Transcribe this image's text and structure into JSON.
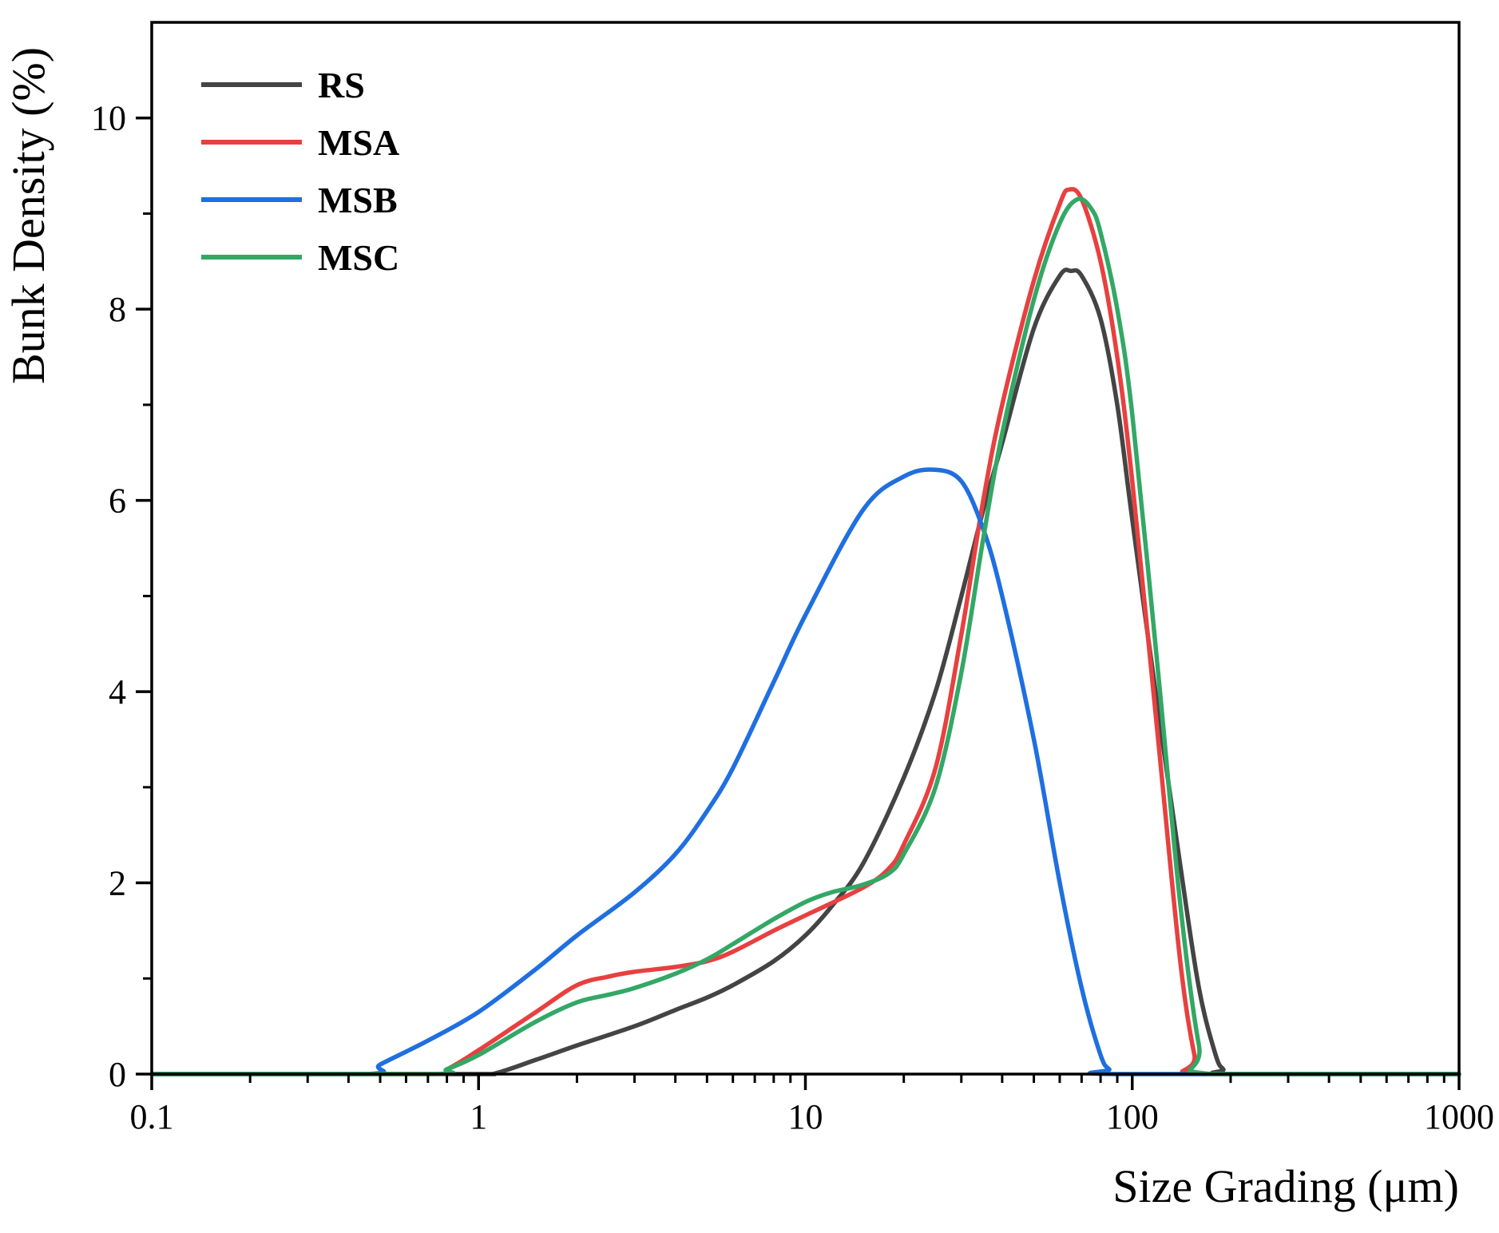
{
  "chart_data": {
    "type": "line",
    "title": "",
    "xlabel": "Size Grading (μm)",
    "ylabel": "Bunk Density (%)",
    "xscale": "log",
    "xlim": [
      0.1,
      1000
    ],
    "ylim": [
      0,
      11
    ],
    "x_ticks": [
      0.1,
      1,
      10,
      100,
      1000
    ],
    "x_tick_labels": [
      "0.1",
      "1",
      "10",
      "100",
      "1000"
    ],
    "y_ticks": [
      0,
      2,
      4,
      6,
      8,
      10
    ],
    "y_tick_labels": [
      "0",
      "2",
      "4",
      "6",
      "8",
      "10"
    ],
    "legend_position": "top-left",
    "series": [
      {
        "name": "RS",
        "color": "#444444",
        "x": [
          0.1,
          0.9,
          1.1,
          1.5,
          2,
          3,
          4,
          5,
          6,
          8,
          10,
          12,
          15,
          20,
          25,
          30,
          35,
          40,
          50,
          60,
          65,
          70,
          80,
          90,
          100,
          120,
          140,
          160,
          180,
          190,
          200,
          1000
        ],
        "y": [
          0,
          0,
          0,
          0.15,
          0.3,
          0.5,
          0.67,
          0.8,
          0.93,
          1.18,
          1.45,
          1.75,
          2.2,
          3.1,
          4.0,
          5.0,
          5.9,
          6.6,
          7.8,
          8.35,
          8.4,
          8.35,
          7.9,
          7.0,
          5.8,
          3.8,
          2.2,
          0.9,
          0.2,
          0.05,
          0,
          0
        ]
      },
      {
        "name": "MSA",
        "color": "#e84040",
        "x": [
          0.1,
          0.7,
          0.8,
          1,
          1.5,
          2,
          2.5,
          3,
          4,
          5,
          6,
          8,
          10,
          15,
          18,
          20,
          25,
          30,
          35,
          40,
          50,
          60,
          64,
          70,
          80,
          90,
          100,
          120,
          140,
          155,
          165,
          1000
        ],
        "y": [
          0,
          0,
          0.05,
          0.25,
          0.65,
          0.93,
          1.02,
          1.07,
          1.12,
          1.18,
          1.28,
          1.5,
          1.66,
          1.95,
          2.15,
          2.4,
          3.2,
          4.6,
          6.0,
          7.0,
          8.3,
          9.1,
          9.25,
          9.15,
          8.5,
          7.5,
          6.2,
          3.5,
          1.2,
          0.2,
          0,
          0
        ]
      },
      {
        "name": "MSB",
        "color": "#1f6fe0",
        "x": [
          0.1,
          0.45,
          0.5,
          0.7,
          1,
          1.5,
          2,
          3,
          4,
          5,
          6,
          8,
          10,
          15,
          20,
          25,
          30,
          35,
          40,
          50,
          60,
          70,
          80,
          85,
          90,
          1000
        ],
        "y": [
          0,
          0,
          0.1,
          0.35,
          0.65,
          1.1,
          1.45,
          1.9,
          2.3,
          2.75,
          3.2,
          4.1,
          4.8,
          5.9,
          6.25,
          6.32,
          6.2,
          5.7,
          5.0,
          3.5,
          2.0,
          0.9,
          0.2,
          0.05,
          0,
          0
        ]
      },
      {
        "name": "MSC",
        "color": "#33a866",
        "x": [
          0.1,
          0.7,
          0.8,
          1,
          1.5,
          2,
          2.5,
          3,
          4,
          5,
          6,
          8,
          10,
          12,
          15,
          18,
          20,
          25,
          30,
          35,
          40,
          50,
          60,
          68,
          75,
          80,
          90,
          100,
          120,
          140,
          160,
          175,
          1000
        ],
        "y": [
          0,
          0,
          0.05,
          0.2,
          0.55,
          0.75,
          0.83,
          0.9,
          1.05,
          1.2,
          1.36,
          1.62,
          1.8,
          1.9,
          1.98,
          2.1,
          2.3,
          3.0,
          4.2,
          5.6,
          6.7,
          8.1,
          8.9,
          9.15,
          9.05,
          8.8,
          8.0,
          6.9,
          4.2,
          1.8,
          0.3,
          0,
          0
        ]
      }
    ]
  }
}
